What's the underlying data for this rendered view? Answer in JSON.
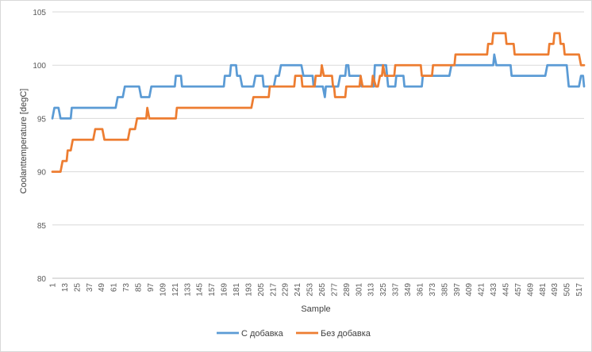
{
  "chart_data": {
    "type": "line",
    "title": "",
    "xlabel": "Sample",
    "ylabel": "Coolanttemperature  [degC]",
    "ylim": [
      80,
      105
    ],
    "yticks": [
      80,
      85,
      90,
      95,
      100,
      105
    ],
    "xlim": [
      1,
      522
    ],
    "xticks": [
      1,
      13,
      25,
      37,
      49,
      61,
      73,
      85,
      97,
      109,
      121,
      133,
      145,
      157,
      169,
      181,
      193,
      205,
      217,
      229,
      241,
      253,
      265,
      277,
      289,
      301,
      313,
      325,
      337,
      349,
      361,
      373,
      385,
      397,
      409,
      421,
      433,
      445,
      457,
      469,
      481,
      493,
      505,
      517
    ],
    "grid": "horizontal",
    "legend_position": "bottom",
    "series": [
      {
        "name": "С добавка",
        "color": "#5b9bd5",
        "points": [
          [
            1,
            95
          ],
          [
            3,
            96
          ],
          [
            7,
            96
          ],
          [
            9,
            95
          ],
          [
            19,
            95
          ],
          [
            20,
            96
          ],
          [
            63,
            96
          ],
          [
            65,
            97
          ],
          [
            70,
            97
          ],
          [
            72,
            98
          ],
          [
            86,
            98
          ],
          [
            88,
            97
          ],
          [
            96,
            97
          ],
          [
            98,
            98
          ],
          [
            121,
            98
          ],
          [
            122,
            99
          ],
          [
            127,
            99
          ],
          [
            128,
            98
          ],
          [
            169,
            98
          ],
          [
            170,
            99
          ],
          [
            175,
            99
          ],
          [
            176,
            100
          ],
          [
            181,
            100
          ],
          [
            182,
            99
          ],
          [
            185,
            99
          ],
          [
            187,
            98
          ],
          [
            198,
            98
          ],
          [
            200,
            99
          ],
          [
            207,
            99
          ],
          [
            208,
            98
          ],
          [
            218,
            98
          ],
          [
            220,
            99
          ],
          [
            223,
            99
          ],
          [
            225,
            100
          ],
          [
            245,
            100
          ],
          [
            247,
            99
          ],
          [
            256,
            99
          ],
          [
            257,
            98
          ],
          [
            266,
            98
          ],
          [
            268,
            97
          ],
          [
            269,
            98
          ],
          [
            281,
            98
          ],
          [
            283,
            99
          ],
          [
            288,
            99
          ],
          [
            289,
            100
          ],
          [
            291,
            100
          ],
          [
            292,
            99
          ],
          [
            303,
            99
          ],
          [
            304,
            98
          ],
          [
            316,
            98
          ],
          [
            317,
            100
          ],
          [
            328,
            100
          ],
          [
            330,
            98
          ],
          [
            337,
            98
          ],
          [
            338,
            99
          ],
          [
            345,
            99
          ],
          [
            346,
            98
          ],
          [
            363,
            98
          ],
          [
            364,
            99
          ],
          [
            390,
            99
          ],
          [
            392,
            100
          ],
          [
            433,
            100
          ],
          [
            434,
            101
          ],
          [
            436,
            100
          ],
          [
            450,
            100
          ],
          [
            451,
            99
          ],
          [
            484,
            99
          ],
          [
            486,
            100
          ],
          [
            505,
            100
          ],
          [
            506,
            99
          ],
          [
            507,
            98
          ],
          [
            517,
            98
          ],
          [
            519,
            99
          ],
          [
            521,
            99
          ],
          [
            522,
            98
          ]
        ]
      },
      {
        "name": "Без добавка",
        "color": "#ed7d31",
        "points": [
          [
            1,
            90
          ],
          [
            9,
            90
          ],
          [
            11,
            91
          ],
          [
            15,
            91
          ],
          [
            16,
            92
          ],
          [
            19,
            92
          ],
          [
            21,
            93
          ],
          [
            41,
            93
          ],
          [
            43,
            94
          ],
          [
            50,
            94
          ],
          [
            52,
            93
          ],
          [
            75,
            93
          ],
          [
            77,
            94
          ],
          [
            82,
            94
          ],
          [
            84,
            95
          ],
          [
            93,
            95
          ],
          [
            94,
            96
          ],
          [
            96,
            95
          ],
          [
            122,
            95
          ],
          [
            123,
            96
          ],
          [
            196,
            96
          ],
          [
            198,
            97
          ],
          [
            213,
            97
          ],
          [
            214,
            98
          ],
          [
            238,
            98
          ],
          [
            239,
            99
          ],
          [
            245,
            99
          ],
          [
            246,
            98
          ],
          [
            258,
            98
          ],
          [
            259,
            99
          ],
          [
            264,
            99
          ],
          [
            265,
            100
          ],
          [
            267,
            99
          ],
          [
            275,
            99
          ],
          [
            276,
            98
          ],
          [
            277,
            98
          ],
          [
            278,
            97
          ],
          [
            288,
            97
          ],
          [
            289,
            98
          ],
          [
            302,
            98
          ],
          [
            303,
            99
          ],
          [
            305,
            98
          ],
          [
            314,
            98
          ],
          [
            315,
            99
          ],
          [
            318,
            98
          ],
          [
            320,
            98
          ],
          [
            322,
            99
          ],
          [
            324,
            99
          ],
          [
            325,
            100
          ],
          [
            327,
            99
          ],
          [
            336,
            99
          ],
          [
            337,
            100
          ],
          [
            362,
            100
          ],
          [
            363,
            99
          ],
          [
            373,
            99
          ],
          [
            374,
            100
          ],
          [
            395,
            100
          ],
          [
            396,
            101
          ],
          [
            427,
            101
          ],
          [
            428,
            102
          ],
          [
            432,
            102
          ],
          [
            433,
            103
          ],
          [
            445,
            103
          ],
          [
            446,
            102
          ],
          [
            453,
            102
          ],
          [
            454,
            101
          ],
          [
            487,
            101
          ],
          [
            488,
            102
          ],
          [
            492,
            102
          ],
          [
            493,
            103
          ],
          [
            498,
            103
          ],
          [
            499,
            102
          ],
          [
            502,
            102
          ],
          [
            503,
            101
          ],
          [
            517,
            101
          ],
          [
            519,
            100
          ],
          [
            522,
            100
          ]
        ]
      }
    ]
  }
}
